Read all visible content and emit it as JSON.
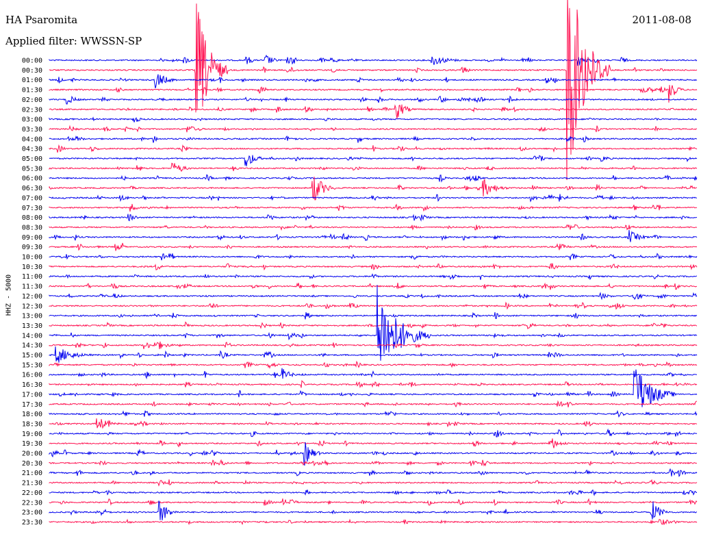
{
  "header": {
    "station": "HA Psaromita",
    "filter": "Applied filter: WWSSN-SP",
    "date": "2011-08-08"
  },
  "chart_data": {
    "type": "line",
    "title": "HA Psaromita",
    "subtitle": "Applied filter: WWSSN-SP",
    "ylabel": "HHZ - 5000",
    "row_labels": [
      "00:00",
      "00:30",
      "01:00",
      "01:30",
      "02:00",
      "02:30",
      "03:00",
      "03:30",
      "04:00",
      "04:30",
      "05:00",
      "05:30",
      "06:00",
      "06:30",
      "07:00",
      "07:30",
      "08:00",
      "08:30",
      "09:00",
      "09:30",
      "10:00",
      "10:30",
      "11:00",
      "11:30",
      "12:00",
      "12:30",
      "13:00",
      "13:30",
      "14:00",
      "14:30",
      "15:00",
      "15:30",
      "16:00",
      "16:30",
      "17:00",
      "17:30",
      "18:00",
      "18:30",
      "19:00",
      "19:30",
      "20:00",
      "20:30",
      "21:00",
      "21:30",
      "22:00",
      "22:30",
      "23:00",
      "23:30"
    ],
    "row_duration_minutes": 30,
    "colors": [
      "#0000ee",
      "#ff1050"
    ],
    "events": [
      {
        "row": 1,
        "minute": 24.0,
        "amp": 180,
        "dur": 2.0
      },
      {
        "row": 1,
        "minute": 6.8,
        "amp": 110,
        "dur": 1.5
      },
      {
        "row": 2,
        "minute": 4.9,
        "amp": 14,
        "dur": 1.3
      },
      {
        "row": 0,
        "minute": 10.0,
        "amp": 10,
        "dur": 1.0
      },
      {
        "row": 0,
        "minute": 17.7,
        "amp": 9,
        "dur": 2.0
      },
      {
        "row": 0,
        "minute": 24.5,
        "amp": 10,
        "dur": 1.0
      },
      {
        "row": 3,
        "minute": 28.7,
        "amp": 20,
        "dur": 0.8
      },
      {
        "row": 4,
        "minute": 0.8,
        "amp": 9,
        "dur": 1.0
      },
      {
        "row": 5,
        "minute": 16.0,
        "amp": 20,
        "dur": 1.0
      },
      {
        "row": 10,
        "minute": 9.1,
        "amp": 16,
        "dur": 1.0
      },
      {
        "row": 11,
        "minute": 5.7,
        "amp": 10,
        "dur": 1.3
      },
      {
        "row": 13,
        "minute": 12.2,
        "amp": 26,
        "dur": 1.2
      },
      {
        "row": 13,
        "minute": 20.1,
        "amp": 14,
        "dur": 1.5
      },
      {
        "row": 18,
        "minute": 26.8,
        "amp": 12,
        "dur": 1.3
      },
      {
        "row": 24,
        "minute": 27.0,
        "amp": 10,
        "dur": 1.0
      },
      {
        "row": 28,
        "minute": 15.2,
        "amp": 75,
        "dur": 2.5
      },
      {
        "row": 29,
        "minute": 4.9,
        "amp": 10,
        "dur": 1.2
      },
      {
        "row": 30,
        "minute": 0.3,
        "amp": 14,
        "dur": 2.0
      },
      {
        "row": 32,
        "minute": 10.8,
        "amp": 10,
        "dur": 1.0
      },
      {
        "row": 34,
        "minute": 27.1,
        "amp": 48,
        "dur": 2.0
      },
      {
        "row": 37,
        "minute": 2.2,
        "amp": 12,
        "dur": 1.3
      },
      {
        "row": 39,
        "minute": 23.2,
        "amp": 12,
        "dur": 1.0
      },
      {
        "row": 40,
        "minute": 11.8,
        "amp": 20,
        "dur": 1.0
      },
      {
        "row": 46,
        "minute": 5.1,
        "amp": 20,
        "dur": 1.0
      },
      {
        "row": 46,
        "minute": 27.9,
        "amp": 20,
        "dur": 1.0
      }
    ]
  }
}
